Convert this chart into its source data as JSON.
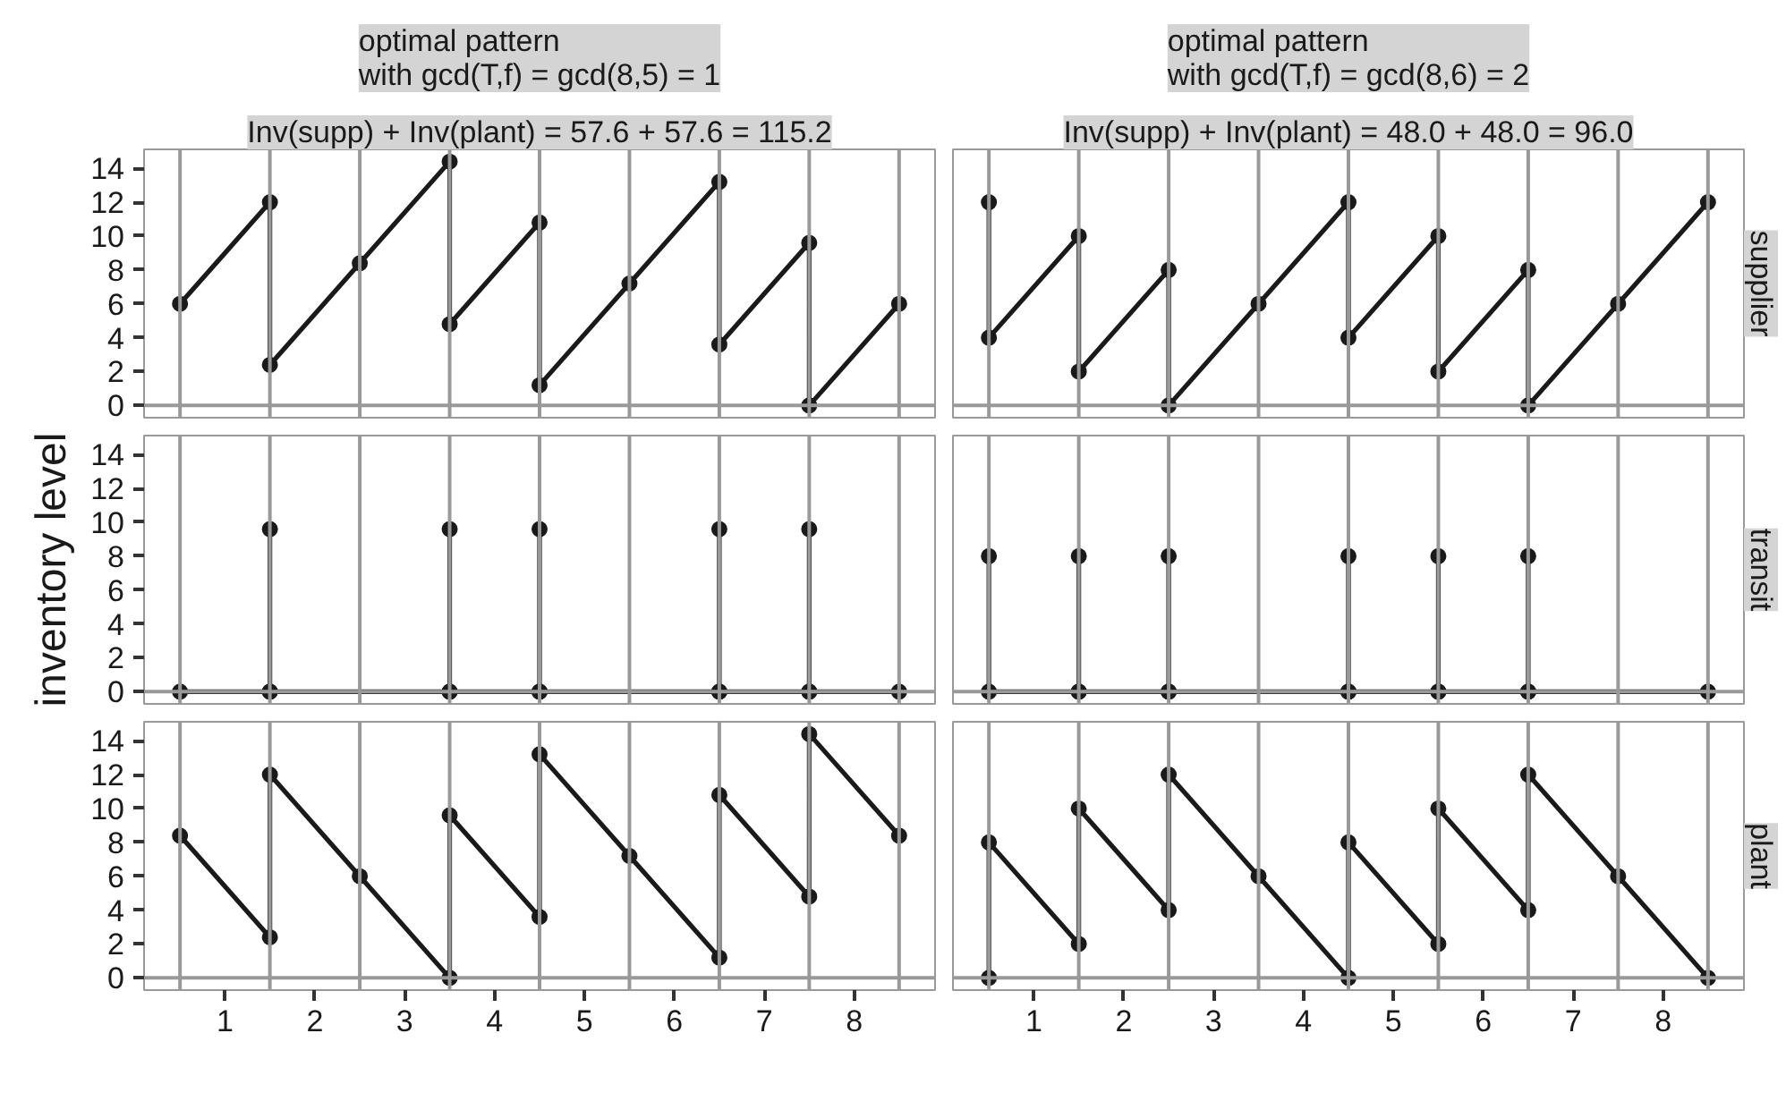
{
  "chart_data": [
    {
      "type": "line",
      "title": "optimal pattern\nwith gcd(T,f) = gcd(8,5) = 1",
      "subtitle": "Inv(supp) + Inv(plant) = 57.6 + 57.6 = 115.2",
      "tick_labels": "y",
      "marker": "circle",
      "xlim": [
        0.1,
        8.9
      ],
      "ylim": [
        -0.72,
        15.12
      ],
      "xticks": [
        1,
        2,
        3,
        4,
        5,
        6,
        7,
        8
      ],
      "yticks": [
        0,
        2,
        4,
        6,
        8,
        10,
        12,
        14
      ],
      "ref_lines": [
        {
          "axis": "x",
          "value": 0.5,
          "color": "#999999"
        },
        {
          "axis": "x",
          "value": 1.5,
          "color": "#999999"
        },
        {
          "axis": "x",
          "value": 2.5,
          "color": "#999999"
        },
        {
          "axis": "x",
          "value": 3.5,
          "color": "#999999"
        },
        {
          "axis": "x",
          "value": 4.5,
          "color": "#999999"
        },
        {
          "axis": "x",
          "value": 5.5,
          "color": "#999999"
        },
        {
          "axis": "x",
          "value": 6.5,
          "color": "#999999"
        },
        {
          "axis": "x",
          "value": 7.5,
          "color": "#999999"
        },
        {
          "axis": "x",
          "value": 8.5,
          "color": "#999999"
        },
        {
          "axis": "y",
          "value": 0,
          "color": "#999999"
        }
      ],
      "series": [
        {
          "color": "#1a1a1a",
          "x": [
            0.5,
            1.5,
            1.5,
            2.5,
            3.5,
            3.5,
            4.5,
            4.5,
            5.5,
            6.5,
            6.5,
            7.5,
            7.5,
            8.5
          ],
          "values": [
            6,
            12,
            2.4,
            8.4,
            14.4,
            4.8,
            10.8,
            1.2,
            7.2,
            13.2,
            3.6,
            9.6,
            0,
            6
          ]
        }
      ]
    },
    {
      "type": "line",
      "title": "optimal pattern\nwith gcd(T,f) = gcd(8,6) = 2",
      "subtitle": "Inv(supp) + Inv(plant) = 48.0 + 48.0 = 96.0",
      "y2label": "supplier",
      "tick_labels": false,
      "marker": "circle",
      "xlim": [
        0.1,
        8.9
      ],
      "ylim": [
        -0.72,
        15.12
      ],
      "xticks": [
        1,
        2,
        3,
        4,
        5,
        6,
        7,
        8
      ],
      "yticks": [
        0,
        2,
        4,
        6,
        8,
        10,
        12,
        14
      ],
      "ref_lines": [
        {
          "axis": "x",
          "value": 0.5,
          "color": "#999999"
        },
        {
          "axis": "x",
          "value": 1.5,
          "color": "#999999"
        },
        {
          "axis": "x",
          "value": 2.5,
          "color": "#999999"
        },
        {
          "axis": "x",
          "value": 3.5,
          "color": "#999999"
        },
        {
          "axis": "x",
          "value": 4.5,
          "color": "#999999"
        },
        {
          "axis": "x",
          "value": 5.5,
          "color": "#999999"
        },
        {
          "axis": "x",
          "value": 6.5,
          "color": "#999999"
        },
        {
          "axis": "x",
          "value": 7.5,
          "color": "#999999"
        },
        {
          "axis": "x",
          "value": 8.5,
          "color": "#999999"
        },
        {
          "axis": "y",
          "value": 0,
          "color": "#999999"
        }
      ],
      "series": [
        {
          "color": "#1a1a1a",
          "x": [
            0.5,
            0.5,
            1.5,
            1.5,
            2.5,
            2.5,
            3.5,
            4.5,
            4.5,
            5.5,
            5.5,
            6.5,
            6.5,
            7.5,
            8.5
          ],
          "values": [
            12,
            4,
            10,
            2,
            8,
            0,
            6,
            12,
            4,
            10,
            2,
            8,
            0,
            6,
            12
          ]
        }
      ]
    },
    {
      "type": "line",
      "ylabel": "inventory level",
      "tick_labels": "y",
      "marker": "circle",
      "xlim": [
        0.1,
        8.9
      ],
      "ylim": [
        -0.72,
        15.12
      ],
      "xticks": [
        1,
        2,
        3,
        4,
        5,
        6,
        7,
        8
      ],
      "yticks": [
        0,
        2,
        4,
        6,
        8,
        10,
        12,
        14
      ],
      "ref_lines": [
        {
          "axis": "x",
          "value": 0.5,
          "color": "#999999"
        },
        {
          "axis": "x",
          "value": 1.5,
          "color": "#999999"
        },
        {
          "axis": "x",
          "value": 2.5,
          "color": "#999999"
        },
        {
          "axis": "x",
          "value": 3.5,
          "color": "#999999"
        },
        {
          "axis": "x",
          "value": 4.5,
          "color": "#999999"
        },
        {
          "axis": "x",
          "value": 5.5,
          "color": "#999999"
        },
        {
          "axis": "x",
          "value": 6.5,
          "color": "#999999"
        },
        {
          "axis": "x",
          "value": 7.5,
          "color": "#999999"
        },
        {
          "axis": "x",
          "value": 8.5,
          "color": "#999999"
        },
        {
          "axis": "y",
          "value": 0,
          "color": "#999999"
        }
      ],
      "series": [
        {
          "color": "#1a1a1a",
          "x": [
            0.5,
            1.5,
            1.5,
            1.5,
            3.5,
            3.5,
            3.5,
            4.5,
            4.5,
            4.5,
            6.5,
            6.5,
            6.5,
            7.5,
            7.5,
            7.5,
            8.5
          ],
          "values": [
            0,
            0,
            9.6,
            0,
            0,
            9.6,
            0,
            0,
            9.6,
            0,
            0,
            9.6,
            0,
            0,
            9.6,
            0,
            0
          ]
        }
      ]
    },
    {
      "type": "line",
      "y2label": "transit",
      "tick_labels": false,
      "marker": "circle",
      "xlim": [
        0.1,
        8.9
      ],
      "ylim": [
        -0.72,
        15.12
      ],
      "xticks": [
        1,
        2,
        3,
        4,
        5,
        6,
        7,
        8
      ],
      "yticks": [
        0,
        2,
        4,
        6,
        8,
        10,
        12,
        14
      ],
      "ref_lines": [
        {
          "axis": "x",
          "value": 0.5,
          "color": "#999999"
        },
        {
          "axis": "x",
          "value": 1.5,
          "color": "#999999"
        },
        {
          "axis": "x",
          "value": 2.5,
          "color": "#999999"
        },
        {
          "axis": "x",
          "value": 3.5,
          "color": "#999999"
        },
        {
          "axis": "x",
          "value": 4.5,
          "color": "#999999"
        },
        {
          "axis": "x",
          "value": 5.5,
          "color": "#999999"
        },
        {
          "axis": "x",
          "value": 6.5,
          "color": "#999999"
        },
        {
          "axis": "x",
          "value": 7.5,
          "color": "#999999"
        },
        {
          "axis": "x",
          "value": 8.5,
          "color": "#999999"
        },
        {
          "axis": "y",
          "value": 0,
          "color": "#999999"
        }
      ],
      "series": [
        {
          "color": "#1a1a1a",
          "x": [
            0.5,
            0.5,
            1.5,
            1.5,
            1.5,
            2.5,
            2.5,
            2.5,
            4.5,
            4.5,
            4.5,
            5.5,
            5.5,
            5.5,
            6.5,
            6.5,
            6.5,
            8.5
          ],
          "values": [
            8,
            0,
            0,
            8,
            0,
            0,
            8,
            0,
            0,
            8,
            0,
            0,
            8,
            0,
            0,
            8,
            0,
            0
          ]
        }
      ]
    },
    {
      "type": "line",
      "marker": "circle",
      "xlim": [
        0.1,
        8.9
      ],
      "ylim": [
        -0.72,
        15.12
      ],
      "xticks": [
        1,
        2,
        3,
        4,
        5,
        6,
        7,
        8
      ],
      "yticks": [
        0,
        2,
        4,
        6,
        8,
        10,
        12,
        14
      ],
      "ref_lines": [
        {
          "axis": "x",
          "value": 0.5,
          "color": "#999999"
        },
        {
          "axis": "x",
          "value": 1.5,
          "color": "#999999"
        },
        {
          "axis": "x",
          "value": 2.5,
          "color": "#999999"
        },
        {
          "axis": "x",
          "value": 3.5,
          "color": "#999999"
        },
        {
          "axis": "x",
          "value": 4.5,
          "color": "#999999"
        },
        {
          "axis": "x",
          "value": 5.5,
          "color": "#999999"
        },
        {
          "axis": "x",
          "value": 6.5,
          "color": "#999999"
        },
        {
          "axis": "x",
          "value": 7.5,
          "color": "#999999"
        },
        {
          "axis": "x",
          "value": 8.5,
          "color": "#999999"
        },
        {
          "axis": "y",
          "value": 0,
          "color": "#999999"
        }
      ],
      "series": [
        {
          "color": "#1a1a1a",
          "x": [
            0.5,
            1.5,
            1.5,
            2.5,
            3.5,
            3.5,
            4.5,
            4.5,
            5.5,
            6.5,
            6.5,
            7.5,
            7.5,
            8.5
          ],
          "values": [
            8.4,
            2.4,
            12,
            6,
            0,
            9.6,
            3.6,
            13.2,
            7.2,
            1.2,
            10.8,
            4.8,
            14.4,
            8.4
          ]
        }
      ]
    },
    {
      "type": "line",
      "y2label": "plant",
      "tick_labels": "x",
      "marker": "circle",
      "xlim": [
        0.1,
        8.9
      ],
      "ylim": [
        -0.72,
        15.12
      ],
      "xticks": [
        1,
        2,
        3,
        4,
        5,
        6,
        7,
        8
      ],
      "yticks": [
        0,
        2,
        4,
        6,
        8,
        10,
        12,
        14
      ],
      "ref_lines": [
        {
          "axis": "x",
          "value": 0.5,
          "color": "#999999"
        },
        {
          "axis": "x",
          "value": 1.5,
          "color": "#999999"
        },
        {
          "axis": "x",
          "value": 2.5,
          "color": "#999999"
        },
        {
          "axis": "x",
          "value": 3.5,
          "color": "#999999"
        },
        {
          "axis": "x",
          "value": 4.5,
          "color": "#999999"
        },
        {
          "axis": "x",
          "value": 5.5,
          "color": "#999999"
        },
        {
          "axis": "x",
          "value": 6.5,
          "color": "#999999"
        },
        {
          "axis": "x",
          "value": 7.5,
          "color": "#999999"
        },
        {
          "axis": "x",
          "value": 8.5,
          "color": "#999999"
        },
        {
          "axis": "y",
          "value": 0,
          "color": "#999999"
        }
      ],
      "series": [
        {
          "color": "#1a1a1a",
          "x": [
            0.5,
            0.5,
            1.5,
            1.5,
            2.5,
            2.5,
            3.5,
            4.5,
            4.5,
            5.5,
            5.5,
            6.5,
            6.5,
            7.5,
            8.5
          ],
          "values": [
            0,
            8,
            2,
            10,
            4,
            12,
            6,
            0,
            8,
            2,
            10,
            4,
            12,
            6,
            0
          ]
        }
      ]
    }
  ]
}
